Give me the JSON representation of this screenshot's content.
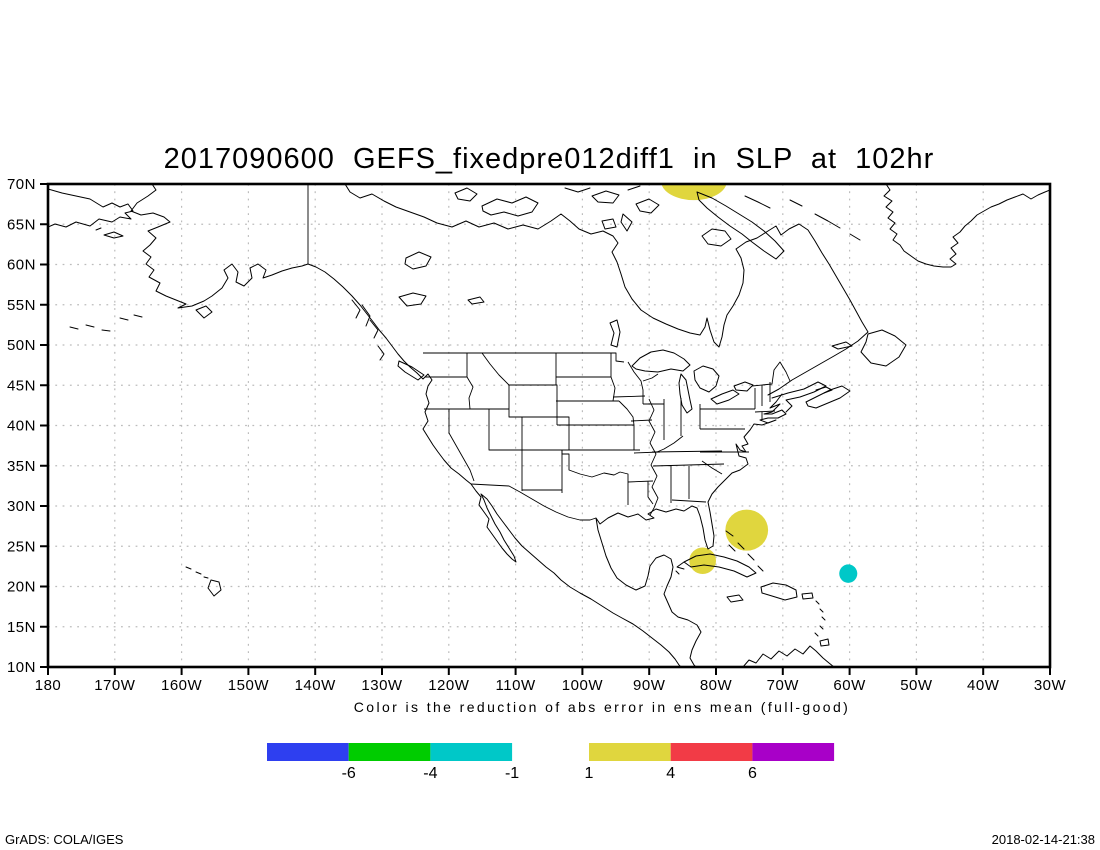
{
  "title": "2017090600 GEFS_fixedpre012diff1 in SLP at 102hr",
  "caption": "Color is the reduction of abs error in ens mean (full-good)",
  "stamp": "GrADS: COLA/IGES",
  "timestamp": "2018-02-14-21:38",
  "colors": {
    "background": "#ffffff",
    "land_outline": "#000000",
    "grid": "#bcbcbc",
    "frame": "#000000",
    "stamp_green": "#00A000",
    "timestamp_color": "#222222"
  },
  "axes": {
    "lat": {
      "labels": [
        "70N",
        "65N",
        "60N",
        "55N",
        "50N",
        "45N",
        "40N",
        "35N",
        "30N",
        "25N",
        "20N",
        "15N",
        "10N"
      ],
      "values": [
        70,
        65,
        60,
        55,
        50,
        45,
        40,
        35,
        30,
        25,
        20,
        15,
        10
      ]
    },
    "lon": {
      "labels": [
        "180",
        "170W",
        "160W",
        "150W",
        "140W",
        "130W",
        "120W",
        "110W",
        "100W",
        "90W",
        "80W",
        "70W",
        "60W",
        "50W",
        "40W",
        "30W"
      ],
      "values_deg_west": [
        180,
        170,
        160,
        150,
        140,
        130,
        120,
        110,
        100,
        90,
        80,
        70,
        60,
        50,
        40,
        30
      ]
    }
  },
  "legend": {
    "negative": {
      "colors": [
        "#2E3FF0",
        "#00CC00",
        "#00C8C8"
      ],
      "labels": [
        "-6",
        "-4",
        "-1"
      ]
    },
    "positive": {
      "colors": [
        "#E0D63E",
        "#F23B46",
        "#A800C8"
      ],
      "labels": [
        "1",
        "4",
        "6"
      ]
    }
  },
  "chart_data": {
    "type": "filled_contour_map",
    "projection": "equirectangular",
    "title": "2017090600 GEFS_fixedpre012diff1 in SLP at 102hr",
    "legend_caption": "Color is the reduction of abs error in ens mean (full-good)",
    "lon_axis": {
      "range_deg_west": [
        180,
        30
      ],
      "tick_step_deg": 10
    },
    "lat_axis": {
      "range_deg_north": [
        10,
        70
      ],
      "tick_step_deg": 5
    },
    "grid": "dotted",
    "colorbar_segments": [
      {
        "range": "below -6",
        "color": "#2E3FF0"
      },
      {
        "range": "-6 to -4",
        "color": "#00CC00"
      },
      {
        "range": "-4 to -1",
        "color": "#00C8C8"
      },
      {
        "range": "1 to 4",
        "color": "#E0D63E"
      },
      {
        "range": "4 to 6",
        "color": "#F23B46"
      },
      {
        "range": "above 6",
        "color": "#A800C8"
      }
    ],
    "regions": [
      {
        "shape": "ellipse",
        "lon_w": 83.3,
        "lat_n": 70.3,
        "rx_deg": 4.9,
        "ry_deg": 2.3,
        "value": "1 to 4",
        "color": "#E0D63E",
        "note": "clipped by top frame near Baffin Island"
      },
      {
        "shape": "ellipse",
        "lon_w": 75.4,
        "lat_n": 27.0,
        "rx_deg": 3.2,
        "ry_deg": 2.55,
        "value": "1 to 4",
        "color": "#E0D63E",
        "note": "over NW Bahamas east of Florida"
      },
      {
        "shape": "ellipse",
        "lon_w": 82.0,
        "lat_n": 23.2,
        "rx_deg": 2.0,
        "ry_deg": 1.65,
        "value": "1 to 4",
        "color": "#E0D63E",
        "note": "over western Cuba"
      },
      {
        "shape": "ellipse",
        "lon_w": 60.2,
        "lat_n": 21.6,
        "rx_deg": 1.35,
        "ry_deg": 1.15,
        "value": "-4 to -1",
        "color": "#00C8C8",
        "note": "Atlantic NE of Lesser Antilles"
      }
    ]
  }
}
